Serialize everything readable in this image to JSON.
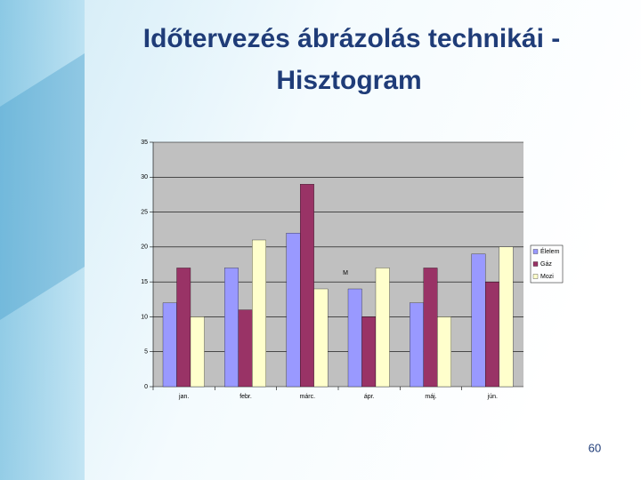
{
  "title": [
    "Időtervezés ábrázolás technikái -",
    "Hisztogram"
  ],
  "page_number": "60",
  "chart_data": {
    "type": "bar",
    "categories": [
      "jan.",
      "febr.",
      "márc.",
      "ápr.",
      "máj.",
      "jún."
    ],
    "series": [
      {
        "name": "Élelem",
        "color": "#9999ff",
        "values": [
          12,
          17,
          22,
          14,
          12,
          19
        ]
      },
      {
        "name": "Gáz",
        "color": "#993366",
        "values": [
          17,
          11,
          29,
          10,
          17,
          15
        ]
      },
      {
        "name": "Mozi",
        "color": "#ffffcc",
        "values": [
          10,
          21,
          14,
          17,
          10,
          20
        ]
      }
    ],
    "annotation": "M",
    "ylim": [
      0,
      35
    ],
    "yticks": [
      0,
      5,
      10,
      15,
      20,
      25,
      30,
      35
    ],
    "grid": true,
    "legend": "right"
  }
}
